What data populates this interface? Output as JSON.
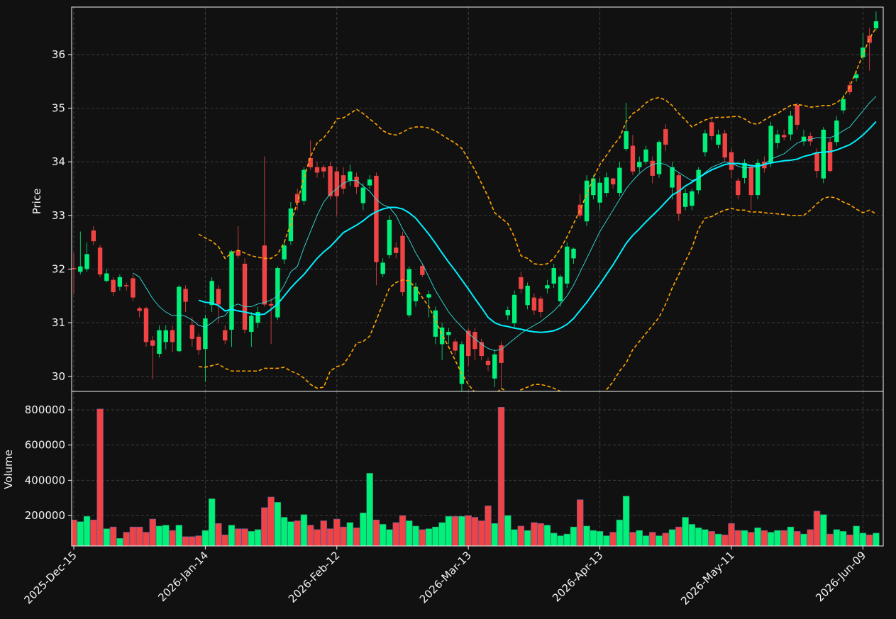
{
  "chart_data": {
    "type": "candlestick",
    "ylabel": "Price",
    "volume_ylabel": "Volume",
    "up_color": "#00f07a",
    "down_color": "#f04444",
    "grid": true,
    "categories": [
      "2025-Dec-15",
      null,
      null,
      null,
      null,
      null,
      null,
      null,
      null,
      null,
      null,
      null,
      null,
      null,
      null,
      null,
      null,
      null,
      null,
      null,
      "2026-Jan-14",
      null,
      null,
      null,
      null,
      null,
      null,
      null,
      null,
      null,
      null,
      null,
      null,
      null,
      null,
      null,
      null,
      null,
      null,
      null,
      "2026-Feb-12",
      null,
      null,
      null,
      null,
      null,
      null,
      null,
      null,
      null,
      null,
      null,
      null,
      null,
      null,
      null,
      null,
      null,
      null,
      null,
      "2026-Mar-13",
      null,
      null,
      null,
      null,
      null,
      null,
      null,
      null,
      null,
      null,
      null,
      null,
      null,
      null,
      null,
      null,
      null,
      null,
      null,
      "2026-Apr-13",
      null,
      null,
      null,
      null,
      null,
      null,
      null,
      null,
      null,
      null,
      null,
      null,
      null,
      null,
      null,
      null,
      null,
      null,
      null,
      "2026-May-11",
      null,
      null,
      null,
      null,
      null,
      null,
      null,
      null,
      null,
      null,
      null,
      null,
      null,
      null,
      null,
      null,
      null,
      null,
      null,
      "2026-Jun-09",
      null,
      null
    ],
    "open": [
      32.02,
      31.95,
      32.0,
      32.72,
      32.4,
      31.78,
      31.8,
      31.67,
      31.7,
      31.83,
      31.27,
      31.27,
      30.67,
      30.42,
      30.64,
      30.86,
      30.47,
      31.63,
      30.96,
      30.74,
      30.51,
      31.33,
      31.63,
      30.86,
      30.87,
      32.35,
      32.1,
      30.83,
      31.0,
      32.44,
      31.35,
      31.1,
      32.18,
      32.52,
      33.4,
      33.27,
      34.07,
      33.9,
      33.9,
      33.92,
      33.82,
      33.75,
      33.65,
      33.72,
      33.23,
      33.56,
      33.74,
      31.91,
      32.26,
      32.4,
      32.62,
      31.14,
      31.4,
      32.06,
      31.47,
      30.74,
      30.6,
      30.77,
      30.65,
      29.86,
      30.85,
      30.83,
      30.64,
      30.29,
      29.96,
      30.58,
      31.14,
      30.99,
      31.85,
      31.33,
      31.47,
      31.45,
      31.64,
      31.73,
      31.4,
      31.73,
      32.2,
      33.2,
      32.89,
      33.38,
      33.24,
      33.42,
      33.69,
      33.42,
      34.24,
      34.3,
      33.9,
      34.0,
      34.02,
      33.77,
      34.61,
      33.52,
      33.75,
      33.16,
      33.18,
      33.47,
      34.18,
      34.74,
      34.32,
      34.53,
      34.18,
      33.65,
      33.7,
      33.91,
      33.38,
      34.0,
      33.98,
      34.35,
      34.5,
      34.51,
      35.06,
      34.38,
      34.48,
      34.18,
      33.69,
      34.37,
      34.37,
      34.96,
      35.43,
      35.56,
      35.95,
      36.35,
      36.49
    ],
    "high": [
      32.3,
      32.7,
      32.5,
      32.8,
      32.45,
      32.0,
      31.85,
      31.9,
      31.75,
      31.9,
      31.3,
      31.3,
      30.75,
      30.95,
      30.95,
      30.95,
      31.7,
      31.7,
      31.1,
      30.8,
      31.15,
      31.85,
      31.7,
      30.95,
      32.35,
      32.8,
      32.2,
      31.2,
      31.3,
      34.1,
      31.45,
      32.05,
      32.5,
      33.25,
      33.5,
      33.9,
      34.4,
      34.0,
      33.95,
      34.0,
      33.9,
      33.9,
      33.95,
      33.8,
      33.6,
      33.75,
      33.8,
      32.2,
      33.0,
      32.5,
      32.7,
      32.05,
      31.75,
      32.1,
      31.6,
      31.3,
      31.0,
      30.9,
      30.7,
      30.65,
      30.9,
      30.9,
      30.7,
      30.35,
      30.5,
      30.65,
      31.3,
      31.6,
      31.95,
      31.75,
      31.55,
      31.5,
      31.8,
      32.1,
      31.9,
      32.5,
      32.4,
      33.4,
      33.75,
      33.75,
      33.7,
      33.8,
      33.7,
      34.0,
      35.1,
      34.5,
      34.1,
      34.3,
      34.1,
      34.4,
      34.7,
      34.0,
      33.8,
      33.5,
      33.5,
      33.9,
      34.6,
      34.8,
      34.6,
      34.6,
      34.25,
      33.7,
      34.05,
      33.95,
      34.05,
      34.1,
      34.75,
      34.6,
      34.6,
      34.95,
      35.1,
      34.6,
      34.55,
      34.25,
      34.65,
      34.45,
      34.85,
      35.25,
      35.5,
      35.7,
      36.4,
      36.5,
      36.8
    ],
    "low": [
      31.53,
      31.9,
      31.95,
      32.45,
      31.85,
      31.75,
      31.5,
      31.6,
      31.6,
      31.4,
      31.1,
      30.55,
      29.95,
      30.35,
      30.5,
      30.45,
      30.45,
      31.2,
      30.55,
      30.4,
      29.9,
      31.2,
      31.0,
      30.6,
      30.55,
      32.2,
      30.8,
      30.55,
      30.9,
      31.3,
      30.6,
      31.05,
      32.1,
      32.45,
      33.1,
      33.2,
      33.85,
      33.7,
      33.7,
      33.3,
      33.0,
      33.4,
      33.55,
      33.4,
      33.1,
      33.5,
      31.7,
      31.85,
      32.2,
      32.2,
      31.5,
      31.1,
      31.3,
      31.85,
      31.1,
      30.6,
      30.3,
      30.6,
      30.4,
      29.7,
      30.2,
      30.3,
      30.3,
      30.1,
      29.8,
      29.8,
      31.05,
      30.9,
      31.55,
      31.25,
      31.15,
      31.1,
      31.55,
      31.65,
      31.3,
      31.65,
      32.1,
      32.95,
      32.8,
      33.3,
      33.1,
      33.35,
      33.5,
      33.35,
      34.2,
      33.75,
      33.8,
      33.95,
      33.6,
      33.7,
      34.2,
      33.3,
      32.9,
      33.1,
      33.1,
      33.4,
      34.1,
      34.4,
      34.25,
      34.0,
      33.7,
      33.3,
      33.6,
      33.1,
      33.3,
      33.8,
      33.9,
      34.25,
      34.4,
      34.4,
      34.6,
      34.3,
      34.3,
      33.7,
      33.6,
      33.8,
      34.3,
      34.9,
      35.25,
      35.5,
      35.9,
      35.7,
      36.45
    ],
    "close": [
      32.0,
      32.05,
      32.28,
      32.52,
      31.9,
      31.92,
      31.57,
      31.85,
      31.68,
      31.47,
      31.22,
      30.64,
      30.57,
      30.86,
      30.86,
      30.64,
      31.67,
      31.39,
      30.7,
      30.49,
      31.08,
      31.78,
      31.34,
      30.67,
      32.33,
      32.25,
      30.87,
      31.13,
      31.2,
      31.34,
      31.32,
      32.02,
      32.44,
      33.13,
      33.24,
      33.85,
      33.9,
      33.8,
      33.82,
      33.36,
      33.36,
      33.5,
      33.82,
      33.53,
      33.52,
      33.67,
      32.13,
      32.12,
      32.92,
      32.3,
      31.57,
      32.0,
      31.67,
      31.89,
      31.53,
      31.23,
      30.91,
      30.83,
      30.48,
      30.6,
      30.38,
      30.51,
      30.38,
      30.21,
      30.41,
      30.25,
      31.24,
      31.52,
      31.63,
      31.69,
      31.23,
      31.2,
      31.7,
      32.02,
      31.86,
      32.42,
      32.38,
      33.0,
      33.65,
      33.69,
      33.61,
      33.71,
      33.58,
      33.89,
      34.57,
      33.82,
      34.0,
      34.23,
      33.74,
      34.37,
      34.32,
      33.9,
      33.03,
      33.42,
      33.45,
      33.85,
      34.53,
      34.48,
      34.51,
      34.08,
      33.85,
      33.38,
      33.98,
      33.38,
      33.98,
      33.88,
      34.67,
      34.51,
      34.46,
      34.86,
      34.69,
      34.47,
      34.38,
      33.83,
      34.6,
      33.83,
      34.77,
      35.17,
      35.3,
      35.63,
      36.13,
      36.22,
      36.62
    ],
    "volume": [
      175000,
      165000,
      195000,
      175000,
      805000,
      125000,
      135000,
      70000,
      105000,
      135000,
      135000,
      105000,
      180000,
      140000,
      145000,
      115000,
      145000,
      80000,
      80000,
      85000,
      115000,
      295000,
      155000,
      90000,
      145000,
      125000,
      125000,
      110000,
      120000,
      245000,
      305000,
      275000,
      190000,
      165000,
      170000,
      205000,
      145000,
      120000,
      170000,
      125000,
      180000,
      135000,
      160000,
      130000,
      215000,
      440000,
      175000,
      150000,
      120000,
      160000,
      200000,
      170000,
      140000,
      120000,
      125000,
      135000,
      160000,
      195000,
      195000,
      195000,
      200000,
      190000,
      170000,
      255000,
      155000,
      815000,
      200000,
      120000,
      140000,
      115000,
      160000,
      155000,
      145000,
      100000,
      85000,
      95000,
      135000,
      290000,
      140000,
      115000,
      110000,
      85000,
      105000,
      175000,
      310000,
      105000,
      115000,
      85000,
      105000,
      85000,
      100000,
      120000,
      135000,
      190000,
      150000,
      130000,
      120000,
      110000,
      95000,
      90000,
      155000,
      115000,
      115000,
      105000,
      130000,
      115000,
      105000,
      115000,
      115000,
      135000,
      110000,
      95000,
      120000,
      225000,
      205000,
      95000,
      120000,
      110000,
      90000,
      140000,
      100000,
      90000,
      100000
    ],
    "ylim": [
      29.72,
      36.885
    ],
    "yticks": [
      30,
      31,
      32,
      33,
      34,
      35,
      36
    ],
    "volume_ylim": [
      27000,
      904700
    ],
    "volume_yticks": [
      200000,
      400000,
      600000,
      800000
    ],
    "lines": [
      {
        "color": "#33e0e0",
        "values": [
          null,
          null,
          null,
          null,
          null,
          null,
          null,
          null,
          null,
          31.93,
          31.85,
          31.65,
          31.45,
          31.3,
          31.2,
          31.13,
          31.15,
          31.12,
          31.05,
          30.95,
          30.92,
          31.0,
          31.1,
          31.13,
          31.3,
          31.35,
          31.3,
          31.3,
          31.35,
          31.38,
          31.42,
          31.5,
          31.7,
          31.95,
          32.05,
          32.4,
          32.7,
          33.0,
          33.25,
          33.4,
          33.5,
          33.6,
          33.65,
          33.65,
          33.55,
          33.45,
          33.3,
          33.2,
          33.15,
          33.0,
          32.75,
          32.55,
          32.3,
          32.1,
          31.85,
          31.6,
          31.4,
          31.2,
          31.05,
          30.92,
          30.8,
          30.7,
          30.6,
          30.52,
          30.48,
          30.5,
          30.6,
          30.7,
          30.8,
          30.88,
          30.95,
          31.02,
          31.12,
          31.22,
          31.35,
          31.5,
          31.7,
          31.95,
          32.2,
          32.45,
          32.7,
          32.9,
          33.1,
          33.3,
          33.5,
          33.65,
          33.78,
          33.88,
          33.95,
          33.98,
          33.95,
          33.88,
          33.8,
          33.72,
          33.65,
          33.7,
          33.8,
          33.9,
          33.95,
          34.0,
          33.97,
          33.92,
          33.88,
          33.9,
          33.9,
          33.95,
          34.05,
          34.1,
          34.15,
          34.25,
          34.35,
          34.4,
          34.42,
          34.45,
          34.45,
          34.45,
          34.5,
          34.58,
          34.65,
          34.8,
          34.95,
          35.1,
          35.22
        ]
      },
      {
        "color": "#00f0ff",
        "values": [
          null,
          null,
          null,
          null,
          null,
          null,
          null,
          null,
          null,
          null,
          null,
          null,
          null,
          null,
          null,
          null,
          null,
          null,
          null,
          31.42,
          31.38,
          31.37,
          31.32,
          31.22,
          31.25,
          31.22,
          31.2,
          31.17,
          31.15,
          31.16,
          31.25,
          31.35,
          31.5,
          31.65,
          31.78,
          31.9,
          32.05,
          32.2,
          32.32,
          32.42,
          32.55,
          32.68,
          32.75,
          32.82,
          32.9,
          33.0,
          33.07,
          33.12,
          33.15,
          33.15,
          33.12,
          33.05,
          32.95,
          32.8,
          32.65,
          32.48,
          32.3,
          32.13,
          31.97,
          31.8,
          31.63,
          31.45,
          31.28,
          31.1,
          31.0,
          30.95,
          30.93,
          30.9,
          30.88,
          30.85,
          30.83,
          30.82,
          30.83,
          30.85,
          30.9,
          30.97,
          31.08,
          31.23,
          31.38,
          31.55,
          31.72,
          31.9,
          32.08,
          32.28,
          32.48,
          32.63,
          32.75,
          32.88,
          33.0,
          33.12,
          33.25,
          33.38,
          33.45,
          33.55,
          33.62,
          33.7,
          33.78,
          33.85,
          33.9,
          33.95,
          33.97,
          33.97,
          33.95,
          33.93,
          33.92,
          33.95,
          33.98,
          34.0,
          34.02,
          34.03,
          34.05,
          34.1,
          34.13,
          34.17,
          34.18,
          34.19,
          34.22,
          34.27,
          34.32,
          34.4,
          34.5,
          34.62,
          34.75
        ]
      },
      {
        "color": "#ffa500",
        "dash": true,
        "values": [
          null,
          null,
          null,
          null,
          null,
          null,
          null,
          null,
          null,
          null,
          null,
          null,
          null,
          null,
          null,
          null,
          null,
          null,
          null,
          32.65,
          32.58,
          32.52,
          32.42,
          32.2,
          32.3,
          32.35,
          32.3,
          32.25,
          32.22,
          32.2,
          32.2,
          32.28,
          32.5,
          32.85,
          33.25,
          33.7,
          34.1,
          34.35,
          34.45,
          34.6,
          34.8,
          34.82,
          34.9,
          34.98,
          34.9,
          34.8,
          34.7,
          34.58,
          34.52,
          34.5,
          34.55,
          34.62,
          34.65,
          34.65,
          34.63,
          34.58,
          34.5,
          34.42,
          34.35,
          34.25,
          34.05,
          33.85,
          33.6,
          33.35,
          33.05,
          32.95,
          32.85,
          32.6,
          32.25,
          32.2,
          32.1,
          32.08,
          32.1,
          32.2,
          32.38,
          32.6,
          32.85,
          33.1,
          33.4,
          33.7,
          33.95,
          34.12,
          34.3,
          34.45,
          34.75,
          34.9,
          34.98,
          35.1,
          35.17,
          35.2,
          35.15,
          35.05,
          34.9,
          34.78,
          34.65,
          34.72,
          34.78,
          34.82,
          34.83,
          34.83,
          34.84,
          34.85,
          34.8,
          34.72,
          34.7,
          34.78,
          34.85,
          34.9,
          34.98,
          35.05,
          35.07,
          35.05,
          35.02,
          35.03,
          35.05,
          35.05,
          35.1,
          35.2,
          35.4,
          35.7,
          36.0,
          36.3,
          36.5
        ]
      },
      {
        "color": "#ffa500",
        "dash": true,
        "values": [
          null,
          null,
          null,
          null,
          null,
          null,
          null,
          null,
          null,
          null,
          null,
          null,
          null,
          null,
          null,
          null,
          null,
          null,
          null,
          30.18,
          30.17,
          30.2,
          30.23,
          30.15,
          30.1,
          30.1,
          30.1,
          30.1,
          30.1,
          30.15,
          30.15,
          30.15,
          30.17,
          30.1,
          30.05,
          29.97,
          29.85,
          29.78,
          29.8,
          30.1,
          30.18,
          30.22,
          30.4,
          30.62,
          30.65,
          30.75,
          31.05,
          31.35,
          31.65,
          31.75,
          31.8,
          31.78,
          31.65,
          31.47,
          31.3,
          31.05,
          30.78,
          30.55,
          30.3,
          30.05,
          29.85,
          29.7,
          29.62,
          29.6,
          29.65,
          29.78,
          29.7,
          29.65,
          29.75,
          29.8,
          29.85,
          29.85,
          29.82,
          29.78,
          29.72,
          29.65,
          29.55,
          29.5,
          29.5,
          29.55,
          29.65,
          29.75,
          29.9,
          30.1,
          30.25,
          30.5,
          30.65,
          30.8,
          30.95,
          31.1,
          31.35,
          31.65,
          31.9,
          32.15,
          32.4,
          32.75,
          32.95,
          32.98,
          33.05,
          33.1,
          33.13,
          33.1,
          33.1,
          33.06,
          33.07,
          33.05,
          33.04,
          33.03,
          33.02,
          33.0,
          33.0,
          33.0,
          33.1,
          33.22,
          33.32,
          33.35,
          33.32,
          33.25,
          33.2,
          33.12,
          33.05,
          33.1,
          33.03
        ]
      }
    ]
  }
}
